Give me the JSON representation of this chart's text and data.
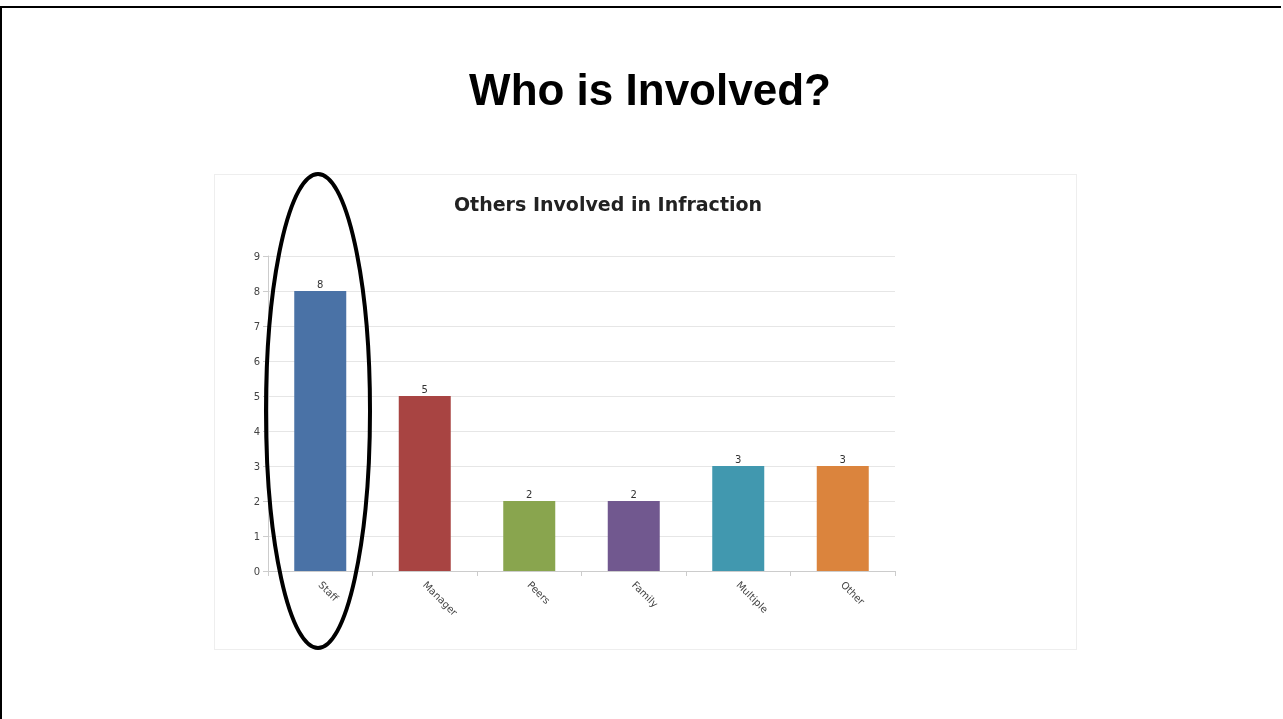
{
  "chart_data": {
    "type": "bar",
    "title": "Who is Involved?",
    "subtitle": "Others Involved in Infraction",
    "categories": [
      "Staff",
      "Manager",
      "Peers",
      "Family",
      "Multiple",
      "Other"
    ],
    "values": [
      8,
      5,
      2,
      2,
      3,
      3
    ],
    "colors": [
      "#4a72a6",
      "#a84442",
      "#89a54e",
      "#71588f",
      "#4198af",
      "#db843d"
    ],
    "ylim": [
      0,
      9
    ],
    "yticks": [
      0,
      1,
      2,
      3,
      4,
      5,
      6,
      7,
      8,
      9
    ],
    "grid": "y",
    "data_labels": true
  }
}
